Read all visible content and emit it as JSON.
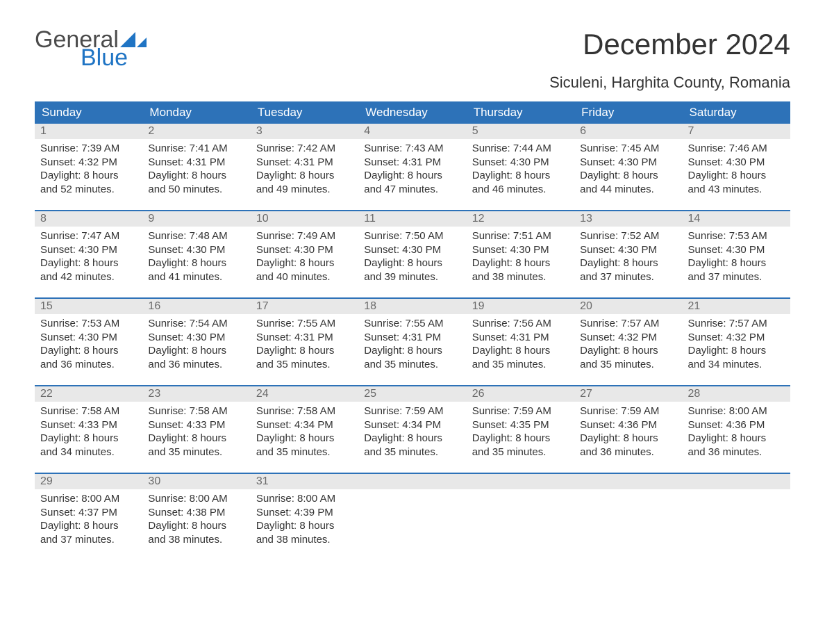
{
  "logo": {
    "word1": "General",
    "word2": "Blue",
    "text_color_word1": "#4b4b4b",
    "text_color_word2": "#1f74c4",
    "triangle_color": "#1f74c4"
  },
  "title": "December 2024",
  "subtitle": "Siculeni, Harghita County, Romania",
  "colors": {
    "header_bg": "#2d72b8",
    "header_text": "#ffffff",
    "daynum_bg": "#e8e8e8",
    "daynum_text": "#6a6a6a",
    "body_text": "#333333",
    "week_border": "#2d72b8",
    "page_bg": "#ffffff"
  },
  "weekdays": [
    "Sunday",
    "Monday",
    "Tuesday",
    "Wednesday",
    "Thursday",
    "Friday",
    "Saturday"
  ],
  "weeks": [
    [
      {
        "day": "1",
        "sunrise": "Sunrise: 7:39 AM",
        "sunset": "Sunset: 4:32 PM",
        "d1": "Daylight: 8 hours",
        "d2": "and 52 minutes."
      },
      {
        "day": "2",
        "sunrise": "Sunrise: 7:41 AM",
        "sunset": "Sunset: 4:31 PM",
        "d1": "Daylight: 8 hours",
        "d2": "and 50 minutes."
      },
      {
        "day": "3",
        "sunrise": "Sunrise: 7:42 AM",
        "sunset": "Sunset: 4:31 PM",
        "d1": "Daylight: 8 hours",
        "d2": "and 49 minutes."
      },
      {
        "day": "4",
        "sunrise": "Sunrise: 7:43 AM",
        "sunset": "Sunset: 4:31 PM",
        "d1": "Daylight: 8 hours",
        "d2": "and 47 minutes."
      },
      {
        "day": "5",
        "sunrise": "Sunrise: 7:44 AM",
        "sunset": "Sunset: 4:30 PM",
        "d1": "Daylight: 8 hours",
        "d2": "and 46 minutes."
      },
      {
        "day": "6",
        "sunrise": "Sunrise: 7:45 AM",
        "sunset": "Sunset: 4:30 PM",
        "d1": "Daylight: 8 hours",
        "d2": "and 44 minutes."
      },
      {
        "day": "7",
        "sunrise": "Sunrise: 7:46 AM",
        "sunset": "Sunset: 4:30 PM",
        "d1": "Daylight: 8 hours",
        "d2": "and 43 minutes."
      }
    ],
    [
      {
        "day": "8",
        "sunrise": "Sunrise: 7:47 AM",
        "sunset": "Sunset: 4:30 PM",
        "d1": "Daylight: 8 hours",
        "d2": "and 42 minutes."
      },
      {
        "day": "9",
        "sunrise": "Sunrise: 7:48 AM",
        "sunset": "Sunset: 4:30 PM",
        "d1": "Daylight: 8 hours",
        "d2": "and 41 minutes."
      },
      {
        "day": "10",
        "sunrise": "Sunrise: 7:49 AM",
        "sunset": "Sunset: 4:30 PM",
        "d1": "Daylight: 8 hours",
        "d2": "and 40 minutes."
      },
      {
        "day": "11",
        "sunrise": "Sunrise: 7:50 AM",
        "sunset": "Sunset: 4:30 PM",
        "d1": "Daylight: 8 hours",
        "d2": "and 39 minutes."
      },
      {
        "day": "12",
        "sunrise": "Sunrise: 7:51 AM",
        "sunset": "Sunset: 4:30 PM",
        "d1": "Daylight: 8 hours",
        "d2": "and 38 minutes."
      },
      {
        "day": "13",
        "sunrise": "Sunrise: 7:52 AM",
        "sunset": "Sunset: 4:30 PM",
        "d1": "Daylight: 8 hours",
        "d2": "and 37 minutes."
      },
      {
        "day": "14",
        "sunrise": "Sunrise: 7:53 AM",
        "sunset": "Sunset: 4:30 PM",
        "d1": "Daylight: 8 hours",
        "d2": "and 37 minutes."
      }
    ],
    [
      {
        "day": "15",
        "sunrise": "Sunrise: 7:53 AM",
        "sunset": "Sunset: 4:30 PM",
        "d1": "Daylight: 8 hours",
        "d2": "and 36 minutes."
      },
      {
        "day": "16",
        "sunrise": "Sunrise: 7:54 AM",
        "sunset": "Sunset: 4:30 PM",
        "d1": "Daylight: 8 hours",
        "d2": "and 36 minutes."
      },
      {
        "day": "17",
        "sunrise": "Sunrise: 7:55 AM",
        "sunset": "Sunset: 4:31 PM",
        "d1": "Daylight: 8 hours",
        "d2": "and 35 minutes."
      },
      {
        "day": "18",
        "sunrise": "Sunrise: 7:55 AM",
        "sunset": "Sunset: 4:31 PM",
        "d1": "Daylight: 8 hours",
        "d2": "and 35 minutes."
      },
      {
        "day": "19",
        "sunrise": "Sunrise: 7:56 AM",
        "sunset": "Sunset: 4:31 PM",
        "d1": "Daylight: 8 hours",
        "d2": "and 35 minutes."
      },
      {
        "day": "20",
        "sunrise": "Sunrise: 7:57 AM",
        "sunset": "Sunset: 4:32 PM",
        "d1": "Daylight: 8 hours",
        "d2": "and 35 minutes."
      },
      {
        "day": "21",
        "sunrise": "Sunrise: 7:57 AM",
        "sunset": "Sunset: 4:32 PM",
        "d1": "Daylight: 8 hours",
        "d2": "and 34 minutes."
      }
    ],
    [
      {
        "day": "22",
        "sunrise": "Sunrise: 7:58 AM",
        "sunset": "Sunset: 4:33 PM",
        "d1": "Daylight: 8 hours",
        "d2": "and 34 minutes."
      },
      {
        "day": "23",
        "sunrise": "Sunrise: 7:58 AM",
        "sunset": "Sunset: 4:33 PM",
        "d1": "Daylight: 8 hours",
        "d2": "and 35 minutes."
      },
      {
        "day": "24",
        "sunrise": "Sunrise: 7:58 AM",
        "sunset": "Sunset: 4:34 PM",
        "d1": "Daylight: 8 hours",
        "d2": "and 35 minutes."
      },
      {
        "day": "25",
        "sunrise": "Sunrise: 7:59 AM",
        "sunset": "Sunset: 4:34 PM",
        "d1": "Daylight: 8 hours",
        "d2": "and 35 minutes."
      },
      {
        "day": "26",
        "sunrise": "Sunrise: 7:59 AM",
        "sunset": "Sunset: 4:35 PM",
        "d1": "Daylight: 8 hours",
        "d2": "and 35 minutes."
      },
      {
        "day": "27",
        "sunrise": "Sunrise: 7:59 AM",
        "sunset": "Sunset: 4:36 PM",
        "d1": "Daylight: 8 hours",
        "d2": "and 36 minutes."
      },
      {
        "day": "28",
        "sunrise": "Sunrise: 8:00 AM",
        "sunset": "Sunset: 4:36 PM",
        "d1": "Daylight: 8 hours",
        "d2": "and 36 minutes."
      }
    ],
    [
      {
        "day": "29",
        "sunrise": "Sunrise: 8:00 AM",
        "sunset": "Sunset: 4:37 PM",
        "d1": "Daylight: 8 hours",
        "d2": "and 37 minutes."
      },
      {
        "day": "30",
        "sunrise": "Sunrise: 8:00 AM",
        "sunset": "Sunset: 4:38 PM",
        "d1": "Daylight: 8 hours",
        "d2": "and 38 minutes."
      },
      {
        "day": "31",
        "sunrise": "Sunrise: 8:00 AM",
        "sunset": "Sunset: 4:39 PM",
        "d1": "Daylight: 8 hours",
        "d2": "and 38 minutes."
      },
      {
        "day": "",
        "sunrise": "",
        "sunset": "",
        "d1": "",
        "d2": ""
      },
      {
        "day": "",
        "sunrise": "",
        "sunset": "",
        "d1": "",
        "d2": ""
      },
      {
        "day": "",
        "sunrise": "",
        "sunset": "",
        "d1": "",
        "d2": ""
      },
      {
        "day": "",
        "sunrise": "",
        "sunset": "",
        "d1": "",
        "d2": ""
      }
    ]
  ]
}
